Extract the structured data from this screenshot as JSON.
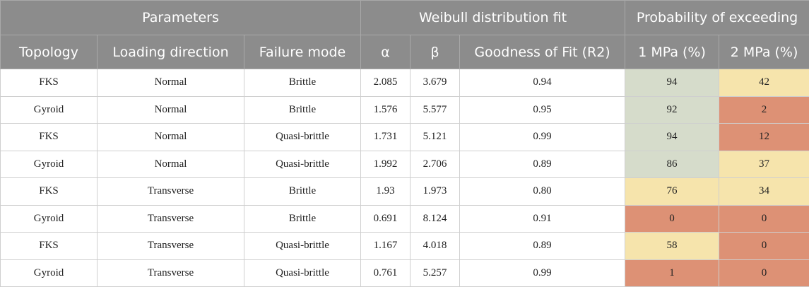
{
  "header_groups": [
    "Parameters",
    "Weibull distribution fit",
    "Probability of exceeding"
  ],
  "columns": [
    "Topology",
    "Loading direction",
    "Failure mode",
    "α",
    "β",
    "Goodness of Fit (R2)",
    "1 MPa (%)",
    "2 MPa (%)"
  ],
  "heat_colors": {
    "green": "#d6dccb",
    "yellow": "#f6e4ac",
    "red": "#dd9175"
  },
  "rows": [
    {
      "topology": "FKS",
      "loading": "Normal",
      "failure": "Brittle",
      "alpha": "2.085",
      "beta": "3.679",
      "gof": "0.94",
      "p1": "94",
      "p1_color": "green",
      "p2": "42",
      "p2_color": "yellow"
    },
    {
      "topology": "Gyroid",
      "loading": "Normal",
      "failure": "Brittle",
      "alpha": "1.576",
      "beta": "5.577",
      "gof": "0.95",
      "p1": "92",
      "p1_color": "green",
      "p2": "2",
      "p2_color": "red"
    },
    {
      "topology": "FKS",
      "loading": "Normal",
      "failure": "Quasi-brittle",
      "alpha": "1.731",
      "beta": "5.121",
      "gof": "0.99",
      "p1": "94",
      "p1_color": "green",
      "p2": "12",
      "p2_color": "red"
    },
    {
      "topology": "Gyroid",
      "loading": "Normal",
      "failure": "Quasi-brittle",
      "alpha": "1.992",
      "beta": "2.706",
      "gof": "0.89",
      "p1": "86",
      "p1_color": "green",
      "p2": "37",
      "p2_color": "yellow"
    },
    {
      "topology": "FKS",
      "loading": "Transverse",
      "failure": "Brittle",
      "alpha": "1.93",
      "beta": "1.973",
      "gof": "0.80",
      "p1": "76",
      "p1_color": "yellow",
      "p2": "34",
      "p2_color": "yellow"
    },
    {
      "topology": "Gyroid",
      "loading": "Transverse",
      "failure": "Brittle",
      "alpha": "0.691",
      "beta": "8.124",
      "gof": "0.91",
      "p1": "0",
      "p1_color": "red",
      "p2": "0",
      "p2_color": "red"
    },
    {
      "topology": "FKS",
      "loading": "Transverse",
      "failure": "Quasi-brittle",
      "alpha": "1.167",
      "beta": "4.018",
      "gof": "0.89",
      "p1": "58",
      "p1_color": "yellow",
      "p2": "0",
      "p2_color": "red"
    },
    {
      "topology": "Gyroid",
      "loading": "Transverse",
      "failure": "Quasi-brittle",
      "alpha": "0.761",
      "beta": "5.257",
      "gof": "0.99",
      "p1": "1",
      "p1_color": "red",
      "p2": "0",
      "p2_color": "red"
    }
  ]
}
